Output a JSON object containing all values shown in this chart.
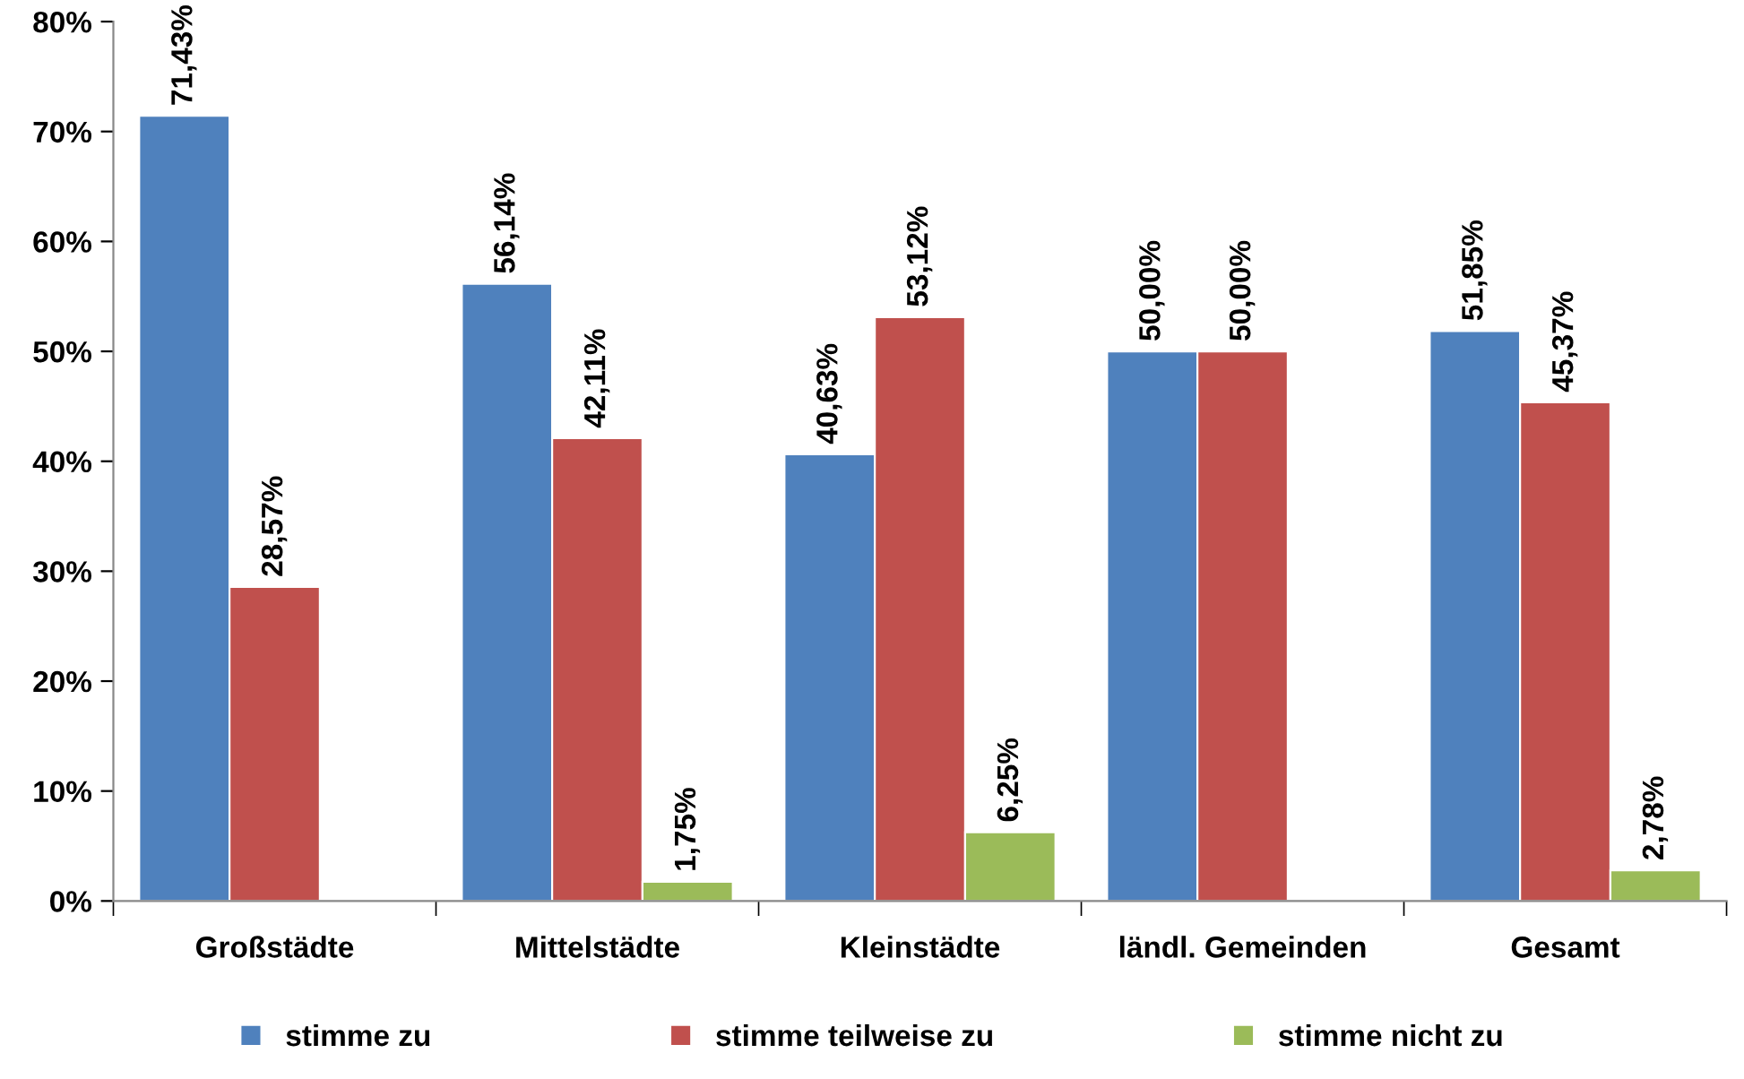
{
  "chart_data": {
    "type": "bar",
    "categories": [
      "Großstädte",
      "Mittelstädte",
      "Kleinstädte",
      "ländl. Gemeinden",
      "Gesamt"
    ],
    "series": [
      {
        "name": "stimme zu",
        "color": "#4f81bd",
        "values": [
          71.43,
          56.14,
          40.63,
          50.0,
          51.85
        ],
        "value_labels": [
          "71,43%",
          "56,14%",
          "40,63%",
          "50,00%",
          "51,85%"
        ]
      },
      {
        "name": "stimme teilweise zu",
        "color": "#c0504d",
        "values": [
          28.57,
          42.11,
          53.12,
          50.0,
          45.37
        ],
        "value_labels": [
          "28,57%",
          "42,11%",
          "53,12%",
          "50,00%",
          "45,37%"
        ]
      },
      {
        "name": "stimme nicht zu",
        "color": "#9bbb59",
        "values": [
          null,
          1.75,
          6.25,
          null,
          2.78
        ],
        "value_labels": [
          null,
          "1,75%",
          "6,25%",
          null,
          "2,78%"
        ]
      }
    ],
    "ylim": [
      0,
      80
    ],
    "yticks": [
      {
        "value": 0,
        "label": "0%"
      },
      {
        "value": 10,
        "label": "10%"
      },
      {
        "value": 20,
        "label": "20%"
      },
      {
        "value": 30,
        "label": "30%"
      },
      {
        "value": 40,
        "label": "40%"
      },
      {
        "value": 50,
        "label": "50%"
      },
      {
        "value": 60,
        "label": "60%"
      },
      {
        "value": 70,
        "label": "70%"
      },
      {
        "value": 80,
        "label": "80%"
      }
    ],
    "grid": false,
    "legend": "bottom"
  }
}
